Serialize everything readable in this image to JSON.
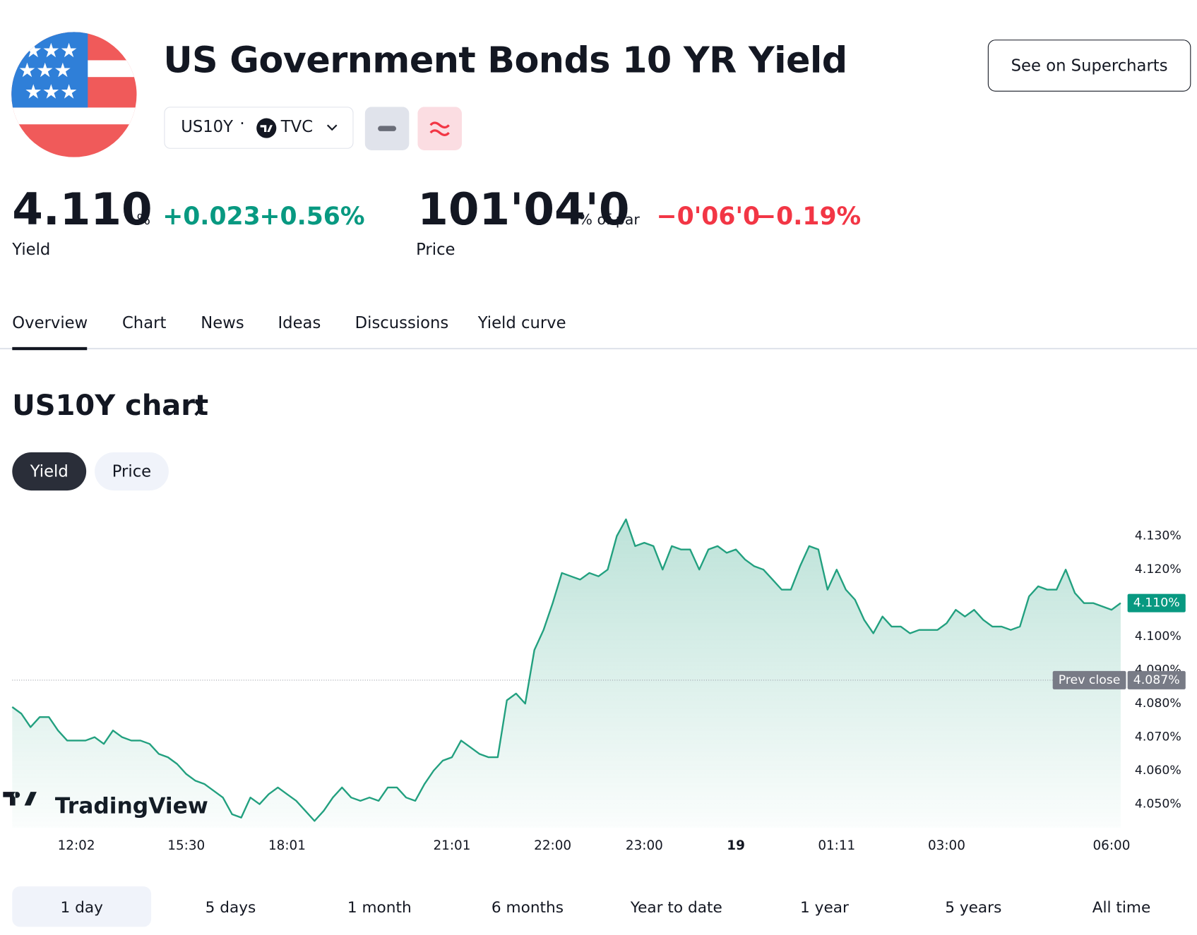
{
  "header": {
    "title": "US Government Bonds 10 YR Yield",
    "symbol": "US10Y",
    "exchange": "TVC",
    "button": "See on Supercharts"
  },
  "yield": {
    "value": "4.110",
    "unit": "%",
    "change": "+0.023",
    "change_pct": "+0.56%",
    "label": "Yield"
  },
  "price": {
    "value": "101'04'0",
    "unit": "% of par",
    "change": "−0'06'0",
    "change_pct": "−0.19%",
    "label": "Price"
  },
  "tabs": [
    "Overview",
    "Chart",
    "News",
    "Ideas",
    "Discussions",
    "Yield curve"
  ],
  "section_title": "US10Y chart",
  "toggle": [
    "Yield",
    "Price"
  ],
  "ranges": [
    "1 day",
    "5 days",
    "1 month",
    "6 months",
    "Year to date",
    "1 year",
    "5 years",
    "All time"
  ],
  "chart_data": {
    "type": "area",
    "color": "#22a07f",
    "categories": [
      null,
      null,
      null,
      null,
      null,
      null,
      null,
      "12:02",
      null,
      null,
      null,
      null,
      null,
      null,
      null,
      null,
      null,
      null,
      null,
      "15:30",
      null,
      null,
      null,
      null,
      null,
      null,
      null,
      null,
      null,
      null,
      "18:01",
      null,
      null,
      null,
      null,
      null,
      null,
      null,
      null,
      null,
      null,
      null,
      null,
      null,
      null,
      null,
      null,
      null,
      "21:01",
      null,
      null,
      null,
      null,
      null,
      null,
      null,
      null,
      null,
      null,
      "22:00",
      null,
      null,
      null,
      null,
      null,
      null,
      null,
      null,
      null,
      "23:00",
      null,
      null,
      null,
      null,
      null,
      null,
      null,
      null,
      null,
      "19",
      null,
      null,
      null,
      null,
      null,
      null,
      null,
      null,
      null,
      null,
      "01:11",
      null,
      null,
      null,
      null,
      null,
      null,
      null,
      null,
      null,
      null,
      null,
      "03:00",
      null,
      null,
      null,
      null,
      null,
      null,
      null,
      null,
      null,
      null,
      null,
      null,
      null,
      null,
      null,
      null,
      null,
      "06:00",
      null
    ],
    "values": [
      4.079,
      4.077,
      4.073,
      4.076,
      4.076,
      4.072,
      4.069,
      4.069,
      4.069,
      4.07,
      4.068,
      4.072,
      4.07,
      4.069,
      4.069,
      4.068,
      4.065,
      4.064,
      4.062,
      4.059,
      4.057,
      4.056,
      4.054,
      4.052,
      4.047,
      4.046,
      4.052,
      4.05,
      4.053,
      4.055,
      4.053,
      4.051,
      4.048,
      4.045,
      4.048,
      4.052,
      4.055,
      4.052,
      4.051,
      4.052,
      4.051,
      4.055,
      4.055,
      4.052,
      4.051,
      4.056,
      4.06,
      4.063,
      4.064,
      4.069,
      4.067,
      4.065,
      4.064,
      4.064,
      4.081,
      4.083,
      4.08,
      4.096,
      4.102,
      4.11,
      4.119,
      4.118,
      4.117,
      4.119,
      4.118,
      4.12,
      4.13,
      4.135,
      4.127,
      4.128,
      4.127,
      4.12,
      4.127,
      4.126,
      4.126,
      4.12,
      4.126,
      4.127,
      4.125,
      4.126,
      4.123,
      4.121,
      4.12,
      4.117,
      4.114,
      4.114,
      4.121,
      4.127,
      4.126,
      4.114,
      4.12,
      4.114,
      4.111,
      4.105,
      4.101,
      4.106,
      4.103,
      4.103,
      4.101,
      4.102,
      4.102,
      4.102,
      4.104,
      4.108,
      4.106,
      4.108,
      4.105,
      4.103,
      4.103,
      4.102,
      4.103,
      4.112,
      4.115,
      4.114,
      4.114,
      4.12,
      4.113,
      4.11,
      4.11,
      4.109,
      4.108,
      4.11
    ],
    "last_label": "4.110%",
    "ylim": [
      4.043,
      4.142
    ],
    "yticks": [
      {
        "value": 4.05,
        "label": "4.050%"
      },
      {
        "value": 4.06,
        "label": "4.060%"
      },
      {
        "value": 4.07,
        "label": "4.070%"
      },
      {
        "value": 4.08,
        "label": "4.080%"
      },
      {
        "value": 4.09,
        "label": "4.090%"
      },
      {
        "value": 4.1,
        "label": "4.100%"
      },
      {
        "value": 4.11,
        "label": "4.110%"
      },
      {
        "value": 4.12,
        "label": "4.120%"
      },
      {
        "value": 4.13,
        "label": "4.130%"
      }
    ],
    "prev_close": {
      "value": 4.087,
      "label": "4.087%"
    },
    "prev_close_text": "Prev close",
    "watermark": "TradingView"
  }
}
